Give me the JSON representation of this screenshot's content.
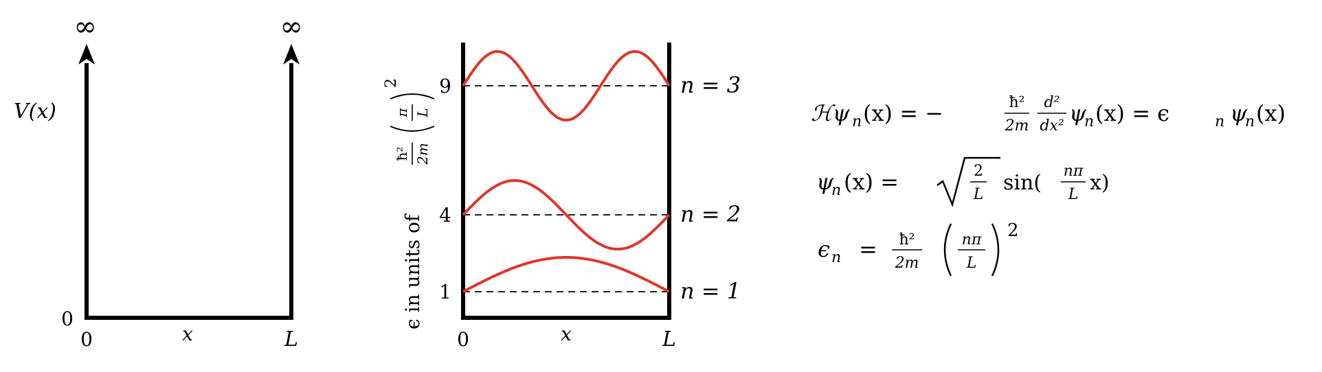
{
  "colors": {
    "ink": "#000000",
    "wave": "#e0352b"
  },
  "potential_panel": {
    "left_infinity": "∞",
    "right_infinity": "∞",
    "axis_label": "V(x)",
    "zero_label": "0",
    "x_zero_tick": "0",
    "x_label": "x",
    "x_end_tick": "L"
  },
  "levels_panel": {
    "y_label_prefix": "ϵ in units of",
    "y_label_coef_num": "ħ²",
    "y_label_coef_den": "2m",
    "y_label_frac_num": "π",
    "y_label_frac_den": "L",
    "y_label_power": "2",
    "x_zero_tick": "0",
    "x_label": "x",
    "x_end_tick": "L",
    "levels": [
      {
        "energy_tick": "1",
        "label": "n = 1",
        "n": 1,
        "energy": 1
      },
      {
        "energy_tick": "4",
        "label": "n = 2",
        "n": 2,
        "energy": 4
      },
      {
        "energy_tick": "9",
        "label": "n = 3",
        "n": 3,
        "energy": 9
      }
    ]
  },
  "equations": {
    "eq1": {
      "H": "ℋψ",
      "n1": "n",
      "x1": "(x) = −",
      "hbar": "ħ²",
      "two_m": "2m",
      "d2": "d²",
      "dx2": "dx²",
      "psi2": "ψ",
      "n2": "n",
      "x2": "(x) = ϵ",
      "n3": "n",
      "psi3": "ψ",
      "n4": "n",
      "x3": "(x)"
    },
    "eq2": {
      "psi": "ψ",
      "n": "n",
      "eq": "(x) =",
      "two": "2",
      "L": "L",
      "sin": "sin(",
      "npi": "nπ",
      "L2": "L",
      "xclose": "x)"
    },
    "eq3": {
      "eps": "ϵ",
      "n": "n",
      "eq": "=",
      "hbar": "ħ²",
      "two_m": "2m",
      "npi": "nπ",
      "L": "L",
      "power": "2"
    }
  }
}
